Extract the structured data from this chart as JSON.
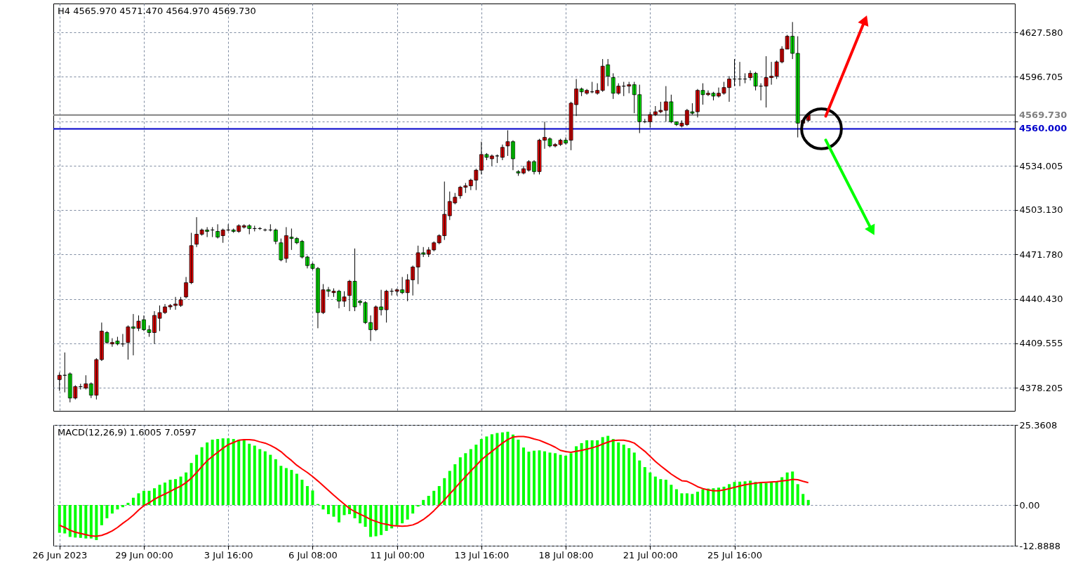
{
  "chart_data": [
    {
      "type": "candlestick",
      "title": "H4 4565.970 4571.470 4564.970 4569.730",
      "categories": [
        null,
        null,
        null,
        null,
        null,
        null,
        null,
        null,
        null,
        null,
        null,
        null,
        null,
        null,
        null,
        null,
        null,
        null,
        null,
        null,
        null,
        null,
        null,
        null,
        null,
        null,
        null,
        null,
        null,
        null,
        null,
        null,
        null,
        null,
        null,
        null,
        null,
        null,
        null,
        null,
        null,
        null,
        null,
        null,
        null,
        null,
        null,
        null,
        null,
        null,
        null,
        null,
        null,
        null,
        null,
        null,
        null,
        null,
        null,
        null,
        null,
        null,
        null,
        null,
        null,
        null,
        null,
        null,
        null,
        null,
        null,
        null,
        null,
        null,
        null,
        null,
        null,
        null,
        null,
        null,
        null,
        null,
        null,
        null,
        null,
        null,
        null,
        null,
        null,
        null,
        null,
        null,
        null,
        null,
        null,
        null,
        null,
        null,
        null,
        null,
        null,
        null,
        null,
        null,
        null,
        null,
        null,
        null,
        null,
        null,
        null,
        null,
        null,
        null,
        null,
        null,
        null,
        null,
        null,
        null,
        null,
        null,
        null,
        null,
        null,
        null,
        null,
        null,
        null,
        null,
        null,
        null,
        null,
        null,
        null,
        null,
        null,
        null,
        null,
        null,
        null,
        null,
        null,
        null,
        null,
        null,
        null,
        null,
        null,
        null,
        null,
        null,
        null,
        null,
        null,
        null,
        null,
        null,
        null,
        null,
        null,
        null,
        null,
        null,
        null,
        null,
        null,
        null,
        null,
        null,
        null,
        null,
        null,
        null,
        null,
        null,
        null,
        null,
        null,
        null,
        null
      ],
      "ohlc": [
        [
          4384,
          4389,
          4376,
          4387
        ],
        [
          4387,
          4403,
          4375,
          4387
        ],
        [
          4388,
          4389,
          4368,
          4371
        ],
        [
          4371,
          4380,
          4370,
          4379
        ],
        [
          4379,
          4381,
          4377,
          4379
        ],
        [
          4378,
          4387,
          4377,
          4381
        ],
        [
          4381,
          4382,
          4371,
          4373
        ],
        [
          4373,
          4399,
          4370,
          4398
        ],
        [
          4398,
          4424,
          4397,
          4418
        ],
        [
          4417,
          4418,
          4409,
          4410
        ],
        [
          4409,
          4413,
          4407,
          4410
        ],
        [
          4411,
          4414,
          4408,
          4409
        ],
        [
          4409,
          4416,
          4407,
          4409
        ],
        [
          4410,
          4422,
          4398,
          4421
        ],
        [
          4421,
          4430,
          4401,
          4420
        ],
        [
          4420,
          4429,
          4418,
          4425
        ],
        [
          4426,
          4429,
          4418,
          4419
        ],
        [
          4419,
          4422,
          4414,
          4417
        ],
        [
          4417,
          4432,
          4409,
          4429
        ],
        [
          4427,
          4436,
          4418,
          4431
        ],
        [
          4431,
          4437,
          4430,
          4435
        ],
        [
          4435,
          4437,
          4433,
          4436
        ],
        [
          4436,
          4442,
          4433,
          4437
        ],
        [
          4436,
          4442,
          4435,
          4440
        ],
        [
          4442,
          4456,
          4441,
          4452
        ],
        [
          4452,
          4487,
          4451,
          4478
        ],
        [
          4479,
          4498,
          4477,
          4486
        ],
        [
          4486,
          4490,
          4485,
          4489
        ],
        [
          4489,
          4491,
          4484,
          4488
        ],
        [
          4489,
          4491,
          4484,
          4489
        ],
        [
          4488,
          4493,
          4483,
          4484
        ],
        [
          4485,
          4490,
          4480,
          4489
        ],
        [
          4489,
          4493,
          4488,
          4489
        ],
        [
          4489,
          4490,
          4487,
          4488
        ],
        [
          4488,
          4493,
          4487,
          4492
        ],
        [
          4491,
          4493,
          4490,
          4492
        ],
        [
          4492,
          4493,
          4486,
          4490
        ],
        [
          4490,
          4492,
          4488,
          4490
        ],
        [
          4490,
          4491,
          4489,
          4490
        ],
        [
          4489,
          4490,
          4488,
          4489
        ],
        [
          4489,
          4493,
          4488,
          4489
        ],
        [
          4489,
          4490,
          4479,
          4481
        ],
        [
          4480,
          4483,
          4467,
          4468
        ],
        [
          4469,
          4491,
          4466,
          4485
        ],
        [
          4484,
          4490,
          4475,
          4483
        ],
        [
          4483,
          4484,
          4479,
          4480
        ],
        [
          4481,
          4482,
          4469,
          4470
        ],
        [
          4470,
          4471,
          4462,
          4464
        ],
        [
          4465,
          4466,
          4461,
          4462
        ],
        [
          4462,
          4463,
          4420,
          4431
        ],
        [
          4431,
          4451,
          4430,
          4447
        ],
        [
          4447,
          4449,
          4442,
          4446
        ],
        [
          4445,
          4448,
          4442,
          4446
        ],
        [
          4446,
          4447,
          4434,
          4439
        ],
        [
          4439,
          4446,
          4435,
          4442
        ],
        [
          4443,
          4454,
          4432,
          4453
        ],
        [
          4453,
          4476,
          4432,
          4435
        ],
        [
          4439,
          4440,
          4436,
          4438
        ],
        [
          4438,
          4439,
          4423,
          4424
        ],
        [
          4424,
          4429,
          4411,
          4419
        ],
        [
          4419,
          4436,
          4418,
          4435
        ],
        [
          4435,
          4447,
          4429,
          4433
        ],
        [
          4433,
          4447,
          4424,
          4446
        ],
        [
          4446,
          4448,
          4443,
          4446
        ],
        [
          4446,
          4448,
          4443,
          4447
        ],
        [
          4447,
          4456,
          4444,
          4445
        ],
        [
          4445,
          4458,
          4439,
          4454
        ],
        [
          4454,
          4464,
          4443,
          4463
        ],
        [
          4463,
          4478,
          4451,
          4473
        ],
        [
          4473,
          4477,
          4470,
          4472
        ],
        [
          4472,
          4477,
          4470,
          4475
        ],
        [
          4475,
          4481,
          4474,
          4480
        ],
        [
          4480,
          4486,
          4479,
          4485
        ],
        [
          4485,
          4523,
          4482,
          4500
        ],
        [
          4499,
          4516,
          4496,
          4509
        ],
        [
          4508,
          4515,
          4507,
          4512
        ],
        [
          4513,
          4520,
          4511,
          4519
        ],
        [
          4519,
          4522,
          4515,
          4520
        ],
        [
          4520,
          4525,
          4517,
          4524
        ],
        [
          4524,
          4532,
          4517,
          4531
        ],
        [
          4531,
          4551,
          4528,
          4542
        ],
        [
          4542,
          4543,
          4538,
          4540
        ],
        [
          4539,
          4542,
          4534,
          4541
        ],
        [
          4541,
          4542,
          4536,
          4541
        ],
        [
          4540,
          4549,
          4538,
          4547
        ],
        [
          4548,
          4559,
          4541,
          4551
        ],
        [
          4551,
          4552,
          4531,
          4539
        ],
        [
          4530,
          4531,
          4527,
          4529
        ],
        [
          4529,
          4534,
          4528,
          4532
        ],
        [
          4531,
          4538,
          4530,
          4537
        ],
        [
          4537,
          4538,
          4528,
          4530
        ],
        [
          4530,
          4553,
          4528,
          4552
        ],
        [
          4552,
          4565,
          4546,
          4554
        ],
        [
          4553,
          4554,
          4547,
          4548
        ],
        [
          4548,
          4550,
          4547,
          4549
        ],
        [
          4549,
          4553,
          4548,
          4552
        ],
        [
          4552,
          4554,
          4549,
          4550
        ],
        [
          4552,
          4579,
          4545,
          4578
        ],
        [
          4577,
          4595,
          4569,
          4588
        ],
        [
          4588,
          4589,
          4583,
          4586
        ],
        [
          4585,
          4588,
          4584,
          4587
        ],
        [
          4586,
          4593,
          4585,
          4586
        ],
        [
          4585,
          4592,
          4584,
          4587
        ],
        [
          4587,
          4609,
          4586,
          4604
        ],
        [
          4605,
          4609,
          4590,
          4597
        ],
        [
          4596,
          4599,
          4581,
          4585
        ],
        [
          4585,
          4592,
          4584,
          4590
        ],
        [
          4590,
          4593,
          4583,
          4590
        ],
        [
          4590,
          4593,
          4585,
          4591
        ],
        [
          4591,
          4593,
          4571,
          4584
        ],
        [
          4584,
          4591,
          4557,
          4565
        ],
        [
          4565,
          4567,
          4564,
          4565
        ],
        [
          4565,
          4572,
          4561,
          4570
        ],
        [
          4570,
          4576,
          4569,
          4572
        ],
        [
          4572,
          4579,
          4571,
          4573
        ],
        [
          4573,
          4590,
          4565,
          4579
        ],
        [
          4579,
          4584,
          4564,
          4565
        ],
        [
          4565,
          4565,
          4562,
          4563
        ],
        [
          4562,
          4566,
          4561,
          4564
        ],
        [
          4563,
          4574,
          4562,
          4573
        ],
        [
          4572,
          4578,
          4570,
          4571
        ],
        [
          4572,
          4588,
          4568,
          4587
        ],
        [
          4587,
          4592,
          4577,
          4584
        ],
        [
          4584,
          4587,
          4583,
          4585
        ],
        [
          4585,
          4586,
          4580,
          4583
        ],
        [
          4583,
          4589,
          4582,
          4585
        ],
        [
          4585,
          4593,
          4584,
          4589
        ],
        [
          4589,
          4597,
          4579,
          4595
        ],
        [
          4595,
          4609,
          4590,
          4595
        ],
        [
          4595,
          4607,
          4590,
          4595
        ],
        [
          4595,
          4599,
          4592,
          4595
        ],
        [
          4596,
          4601,
          4594,
          4599
        ],
        [
          4599,
          4600,
          4587,
          4590
        ],
        [
          4590,
          4592,
          4580,
          4590
        ],
        [
          4590,
          4611,
          4575,
          4596
        ],
        [
          4596,
          4607,
          4591,
          4597
        ],
        [
          4597,
          4608,
          4595,
          4607
        ],
        [
          4607,
          4618,
          4606,
          4616
        ],
        [
          4616,
          4626,
          4616,
          4625
        ],
        [
          4625,
          4635,
          4609,
          4613
        ],
        [
          4613,
          4625,
          4554,
          4564
        ],
        [
          4564,
          4567,
          4562,
          4566
        ],
        [
          4565.97,
          4571.47,
          4564.97,
          4569.73
        ],
        null,
        null,
        null,
        null,
        null,
        null,
        null,
        null,
        null,
        null,
        null,
        null,
        null,
        null,
        null,
        null,
        null,
        null,
        null,
        null,
        null,
        null,
        null,
        null,
        null,
        null,
        null,
        null,
        null,
        null,
        null,
        null,
        null,
        null,
        null,
        null,
        null,
        null
      ],
      "colors": [
        "#ff0000",
        "#000000",
        "#00ff00",
        "#ff0000",
        "#000000",
        "#ff0000",
        "#00ff00",
        "#ff0000",
        "#ff0000",
        "#00ff00",
        "#ff0000",
        "#00ff00",
        "#000000",
        "#ff0000",
        "#00ff00",
        "#ff0000",
        "#00ff00",
        "#00ff00",
        "#ff0000",
        "#ff0000",
        "#ff0000",
        "#ff0000",
        "#ff0000",
        "#ff0000",
        "#ff0000",
        "#ff0000",
        "#ff0000",
        "#ff0000",
        "#00ff00",
        "#000000",
        "#00ff00",
        "#ff0000",
        "#000000",
        "#00ff00",
        "#ff0000",
        "#ff0000",
        "#00ff00",
        "#000000",
        "#000000",
        "#000000",
        "#000000",
        "#00ff00",
        "#00ff00",
        "#ff0000",
        "#00ff00",
        "#00ff00",
        "#00ff00",
        "#00ff00",
        "#00ff00",
        "#00ff00",
        "#ff0000",
        "#00ff00",
        "#ff0000",
        "#00ff00",
        "#ff0000",
        "#ff0000",
        "#00ff00",
        "#00ff00",
        "#00ff00",
        "#00ff00",
        "#ff0000",
        "#00ff00",
        "#ff0000",
        "#000000",
        "#ff0000",
        "#00ff00",
        "#ff0000",
        "#ff0000",
        "#ff0000",
        "#00ff00",
        "#ff0000",
        "#ff0000",
        "#ff0000",
        "#ff0000",
        "#ff0000",
        "#ff0000",
        "#ff0000",
        "#ff0000",
        "#ff0000",
        "#ff0000",
        "#ff0000",
        "#00ff00",
        "#ff0000",
        "#000000",
        "#ff0000",
        "#ff0000",
        "#00ff00",
        "#00ff00",
        "#ff0000",
        "#ff0000",
        "#00ff00",
        "#ff0000",
        "#ff0000",
        "#00ff00",
        "#ff0000",
        "#ff0000",
        "#00ff00",
        "#ff0000",
        "#ff0000",
        "#00ff00",
        "#ff0000",
        "#000000",
        "#ff0000",
        "#ff0000",
        "#00ff00",
        "#00ff00",
        "#ff0000",
        "#000000",
        "#ff0000",
        "#00ff00",
        "#00ff00",
        "#000000",
        "#ff0000",
        "#ff0000",
        "#ff0000",
        "#ff0000",
        "#00ff00",
        "#00ff00",
        "#ff0000",
        "#ff0000",
        "#00ff00",
        "#ff0000",
        "#00ff00",
        "#ff0000",
        "#00ff00",
        "#ff0000",
        "#ff0000",
        "#ff0000",
        "#000000",
        "#000000",
        "#000000",
        "#ff0000",
        "#00ff00",
        "#000000",
        "#ff0000",
        "#ff0000",
        "#ff0000",
        "#ff0000",
        "#ff0000",
        "#00ff00",
        "#00ff00",
        "#ff0000",
        "#ff0000",
        null,
        null,
        null,
        null,
        null,
        null,
        null,
        null,
        null,
        null,
        null,
        null,
        null,
        null,
        null,
        null,
        null,
        null,
        null,
        null,
        null,
        null,
        null,
        null,
        null,
        null,
        null,
        null,
        null,
        null,
        null,
        null,
        null,
        null,
        null,
        null,
        null,
        null
      ],
      "ylim": [
        4362,
        4648
      ],
      "yticks": [
        4378.205,
        4409.555,
        {
          "value": 4440.43,
          "label": "4440.430"
        },
        {
          "value": 4471.78,
          "label": "4471.780"
        },
        {
          "value": 4503.13,
          "label": "4503.130"
        },
        4534.005,
        {
          "value": 4565.355,
          "label": null
        },
        4596.705,
        {
          "value": 4627.58,
          "label": "4627.580"
        }
      ],
      "grid": true,
      "tick_labels": "y",
      "ref_lines": [
        {
          "axis": "y",
          "value": 4560,
          "label": "4560.000",
          "color": "#0000cc"
        },
        {
          "axis": "y",
          "value": 4569.73,
          "label": "4569.730",
          "color": "#808080"
        }
      ]
    },
    {
      "type": "bar",
      "title": "MACD(12,26,9) 1.6005 7.0597",
      "categories": [
        "26 Jun 2023",
        null,
        null,
        null,
        null,
        null,
        null,
        null,
        null,
        null,
        null,
        null,
        null,
        null,
        null,
        null,
        "29 Jun 00:00",
        null,
        null,
        null,
        null,
        null,
        null,
        null,
        null,
        null,
        null,
        null,
        null,
        null,
        null,
        null,
        "3 Jul 16:00",
        null,
        null,
        null,
        null,
        null,
        null,
        null,
        null,
        null,
        null,
        null,
        null,
        null,
        null,
        null,
        "6 Jul 08:00",
        null,
        null,
        null,
        null,
        null,
        null,
        null,
        null,
        null,
        null,
        null,
        null,
        null,
        null,
        null,
        "11 Jul 00:00",
        null,
        null,
        null,
        null,
        null,
        null,
        null,
        null,
        null,
        null,
        null,
        null,
        null,
        null,
        null,
        "13 Jul 16:00",
        null,
        null,
        null,
        null,
        null,
        null,
        null,
        null,
        null,
        null,
        null,
        null,
        null,
        null,
        null,
        "18 Jul 08:00",
        null,
        null,
        null,
        null,
        null,
        null,
        null,
        null,
        null,
        null,
        null,
        null,
        null,
        null,
        null,
        "21 Jul 00:00",
        null,
        null,
        null,
        null,
        null,
        null,
        null,
        null,
        null,
        null,
        null,
        null,
        null,
        null,
        null,
        "25 Jul 16:00",
        null,
        null,
        null,
        null,
        null,
        null,
        null,
        null,
        null,
        null,
        null,
        null,
        null,
        null,
        null,
        null,
        null,
        null,
        null,
        null,
        null,
        null,
        null,
        null,
        null,
        null,
        null,
        null,
        null,
        null,
        null,
        null,
        null,
        null,
        null,
        null,
        null,
        null,
        null,
        null,
        null,
        null,
        null,
        null,
        null,
        null,
        null,
        null,
        null,
        null,
        null,
        null
      ],
      "series": [
        {
          "type": "bar",
          "color": "#00ff00",
          "values": [
            -8.8,
            -9.0,
            -10.1,
            -10.3,
            -10.4,
            -10.6,
            -10.6,
            -11.1,
            -6.4,
            -4.2,
            -2.7,
            -1.4,
            -0.7,
            0.7,
            2.3,
            3.7,
            4.5,
            4.5,
            5.3,
            6.4,
            7.1,
            8.0,
            8.2,
            9.0,
            10.3,
            13.3,
            15.9,
            18.3,
            19.8,
            20.7,
            20.9,
            21.1,
            21.1,
            20.9,
            20.7,
            20.5,
            19.4,
            18.8,
            17.7,
            17.0,
            15.9,
            14.5,
            12.4,
            11.7,
            11.1,
            9.9,
            8.0,
            6.0,
            4.6,
            0.3,
            -1.4,
            -2.9,
            -3.7,
            -5.5,
            -3.2,
            -2.9,
            -4.2,
            -5.8,
            -6.9,
            -10.1,
            -9.9,
            -9.5,
            -8.2,
            -7.4,
            -6.4,
            -5.8,
            -4.6,
            -2.7,
            -0.5,
            1.6,
            2.9,
            4.5,
            6.0,
            8.5,
            10.8,
            12.9,
            15.1,
            16.4,
            17.7,
            19.1,
            20.9,
            21.7,
            22.4,
            22.8,
            23.0,
            23.2,
            22.3,
            20.7,
            18.2,
            16.9,
            17.2,
            17.3,
            17.0,
            16.6,
            16.4,
            15.9,
            15.6,
            16.4,
            18.6,
            19.6,
            20.5,
            20.5,
            20.5,
            21.5,
            21.9,
            20.9,
            19.8,
            19.1,
            18.0,
            16.6,
            14.1,
            12.0,
            10.3,
            9.0,
            8.2,
            8.0,
            6.4,
            5.0,
            3.7,
            3.7,
            3.5,
            4.2,
            5.0,
            5.2,
            5.3,
            5.5,
            5.8,
            6.6,
            7.3,
            7.4,
            7.5,
            7.7,
            7.3,
            6.9,
            6.9,
            7.4,
            7.4,
            8.8,
            10.3,
            10.6,
            6.6,
            3.5,
            1.6005,
            null,
            null,
            null,
            null,
            null,
            null,
            null,
            null,
            null,
            null,
            null,
            null,
            null,
            null,
            null,
            null,
            null,
            null,
            null,
            null,
            null,
            null,
            null,
            null,
            null,
            null,
            null,
            null,
            null,
            null,
            null,
            null,
            null,
            null,
            null,
            null,
            null,
            null
          ]
        },
        {
          "type": "line",
          "color": "#ff0000",
          "values": [
            -6.4,
            -7.1,
            -8.0,
            -8.6,
            -9.0,
            -9.4,
            -9.8,
            -9.9,
            -9.6,
            -9.0,
            -8.2,
            -7.1,
            -5.8,
            -4.6,
            -3.2,
            -1.6,
            -0.2,
            0.7,
            1.8,
            2.7,
            3.5,
            4.3,
            5.2,
            6.0,
            7.1,
            8.5,
            10.3,
            12.2,
            14.0,
            15.4,
            16.7,
            18.0,
            19.1,
            19.8,
            20.5,
            20.7,
            20.7,
            20.5,
            20.0,
            19.6,
            18.9,
            18.0,
            16.9,
            15.4,
            14.1,
            12.6,
            11.4,
            10.3,
            9.0,
            7.6,
            6.1,
            4.6,
            3.1,
            1.7,
            0.3,
            -1.1,
            -2.1,
            -2.9,
            -3.7,
            -4.6,
            -5.2,
            -5.8,
            -6.1,
            -6.5,
            -6.6,
            -6.7,
            -6.6,
            -6.3,
            -5.6,
            -4.6,
            -3.3,
            -1.8,
            -0.1,
            1.6,
            3.5,
            5.3,
            7.2,
            9.0,
            10.8,
            12.5,
            14.3,
            15.7,
            17.0,
            18.3,
            19.6,
            20.7,
            21.5,
            21.7,
            21.7,
            21.4,
            20.9,
            20.5,
            19.8,
            19.1,
            18.3,
            17.3,
            16.9,
            16.7,
            17.0,
            17.3,
            17.7,
            18.1,
            18.6,
            19.3,
            19.9,
            20.4,
            20.5,
            20.5,
            20.2,
            19.6,
            18.3,
            17.0,
            15.4,
            13.8,
            12.4,
            11.1,
            9.8,
            8.7,
            7.7,
            7.5,
            6.7,
            5.8,
            5.2,
            4.8,
            4.5,
            4.5,
            4.8,
            5.2,
            5.6,
            6.0,
            6.4,
            6.7,
            6.9,
            7.1,
            7.2,
            7.3,
            7.4,
            7.6,
            7.8,
            8.1,
            8.0,
            7.5,
            7.0597,
            null,
            null,
            null,
            null,
            null,
            null,
            null,
            null,
            null,
            null,
            null,
            null,
            null,
            null,
            null,
            null,
            null,
            null,
            null,
            null,
            null,
            null,
            null,
            null,
            null,
            null,
            null,
            null,
            null,
            null,
            null,
            null,
            null,
            null,
            null,
            null,
            null,
            null
          ]
        }
      ],
      "ylim": [
        -12.8888,
        25.3608
      ],
      "yticks": [
        -12.8888,
        {
          "value": 0,
          "label": "0.00"
        },
        25.3608
      ],
      "grid": true
    }
  ]
}
